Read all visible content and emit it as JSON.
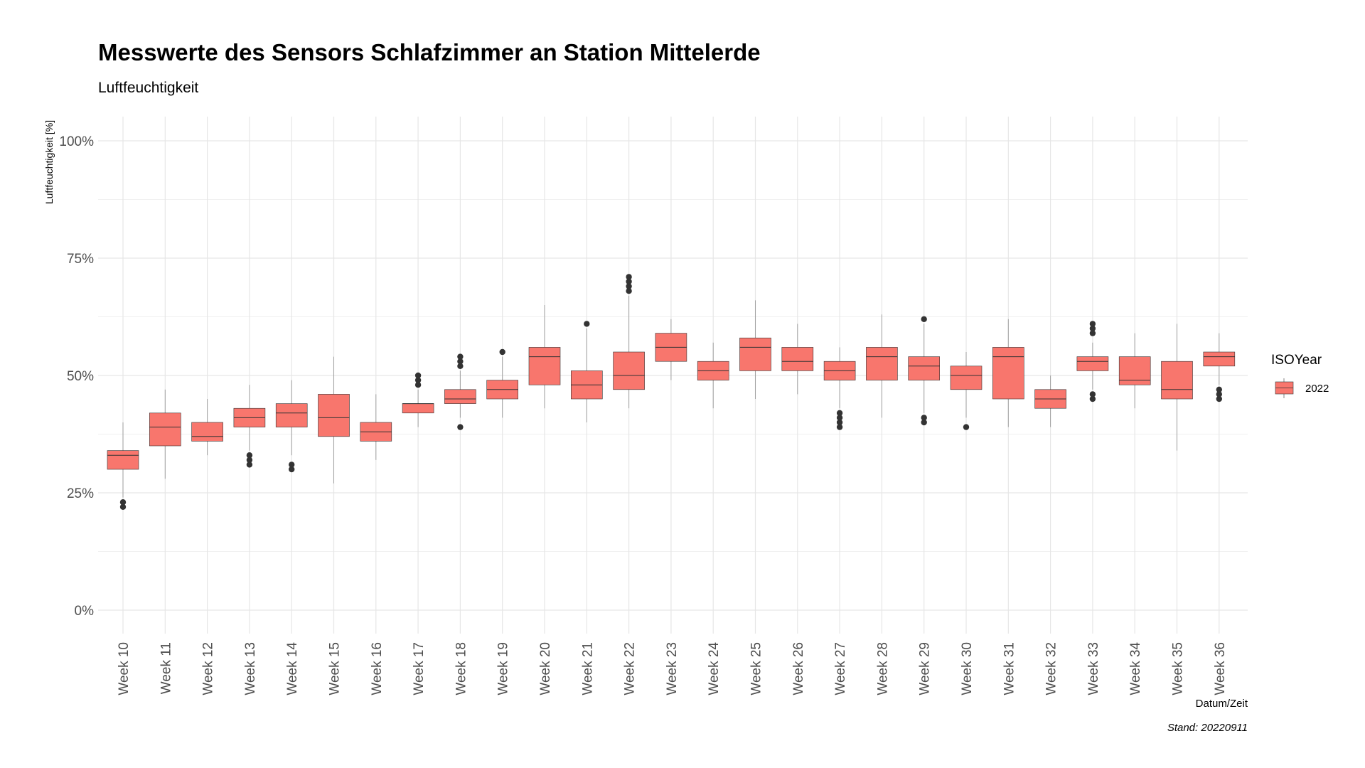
{
  "chart_data": {
    "type": "boxplot",
    "title": "Messwerte des Sensors Schlafzimmer an Station Mittelerde",
    "subtitle": "Luftfeuchtigkeit",
    "xlabel": "Datum/Zeit",
    "ylabel": "Luftfeuchtigkeit [%]",
    "caption": "Stand: 20220911",
    "ylim": [
      0,
      100
    ],
    "y_ticks": [
      "0%",
      "25%",
      "50%",
      "75%",
      "100%"
    ],
    "y_tick_values": [
      0,
      25,
      50,
      75,
      100
    ],
    "grid": true,
    "legend": {
      "title": "ISOYear",
      "position": "right",
      "entries": [
        {
          "label": "2022",
          "color": "#F8766D"
        }
      ]
    },
    "colors": {
      "fill": "#F8766D",
      "line": "#333333",
      "grid": "#e6e6e6",
      "outlier": "#333333"
    },
    "categories": [
      "Week 10",
      "Week 11",
      "Week 12",
      "Week 13",
      "Week 14",
      "Week 15",
      "Week 16",
      "Week 17",
      "Week 18",
      "Week 19",
      "Week 20",
      "Week 21",
      "Week 22",
      "Week 23",
      "Week 24",
      "Week 25",
      "Week 26",
      "Week 27",
      "Week 28",
      "Week 29",
      "Week 30",
      "Week 31",
      "Week 32",
      "Week 33",
      "Week 34",
      "Week 35",
      "Week 36"
    ],
    "series": [
      {
        "name": "2022",
        "boxes": [
          {
            "lower": 24,
            "q1": 30,
            "median": 33,
            "q3": 34,
            "upper": 40,
            "outliers": [
              22,
              23
            ]
          },
          {
            "lower": 28,
            "q1": 35,
            "median": 39,
            "q3": 42,
            "upper": 47,
            "outliers": []
          },
          {
            "lower": 33,
            "q1": 36,
            "median": 37,
            "q3": 40,
            "upper": 45,
            "outliers": []
          },
          {
            "lower": 34,
            "q1": 39,
            "median": 41,
            "q3": 43,
            "upper": 48,
            "outliers": [
              31,
              32,
              33
            ]
          },
          {
            "lower": 33,
            "q1": 39,
            "median": 42,
            "q3": 44,
            "upper": 49,
            "outliers": [
              30,
              31
            ]
          },
          {
            "lower": 27,
            "q1": 37,
            "median": 41,
            "q3": 46,
            "upper": 54,
            "outliers": []
          },
          {
            "lower": 32,
            "q1": 36,
            "median": 38,
            "q3": 40,
            "upper": 46,
            "outliers": []
          },
          {
            "lower": 39,
            "q1": 42,
            "median": 44,
            "q3": 44,
            "upper": 47,
            "outliers": [
              48,
              49,
              50
            ]
          },
          {
            "lower": 41,
            "q1": 44,
            "median": 45,
            "q3": 47,
            "upper": 51,
            "outliers": [
              39,
              52,
              53,
              54
            ]
          },
          {
            "lower": 41,
            "q1": 45,
            "median": 47,
            "q3": 49,
            "upper": 54,
            "outliers": [
              55
            ]
          },
          {
            "lower": 43,
            "q1": 48,
            "median": 54,
            "q3": 56,
            "upper": 65,
            "outliers": []
          },
          {
            "lower": 40,
            "q1": 45,
            "median": 48,
            "q3": 51,
            "upper": 60,
            "outliers": [
              61
            ]
          },
          {
            "lower": 43,
            "q1": 47,
            "median": 50,
            "q3": 55,
            "upper": 67,
            "outliers": [
              68,
              69,
              70,
              71
            ]
          },
          {
            "lower": 49,
            "q1": 53,
            "median": 56,
            "q3": 59,
            "upper": 62,
            "outliers": []
          },
          {
            "lower": 43,
            "q1": 49,
            "median": 51,
            "q3": 53,
            "upper": 57,
            "outliers": []
          },
          {
            "lower": 45,
            "q1": 51,
            "median": 56,
            "q3": 58,
            "upper": 66,
            "outliers": []
          },
          {
            "lower": 46,
            "q1": 51,
            "median": 53,
            "q3": 56,
            "upper": 61,
            "outliers": []
          },
          {
            "lower": 43,
            "q1": 49,
            "median": 51,
            "q3": 53,
            "upper": 56,
            "outliers": [
              39,
              40,
              41,
              42
            ]
          },
          {
            "lower": 41,
            "q1": 49,
            "median": 54,
            "q3": 56,
            "upper": 63,
            "outliers": []
          },
          {
            "lower": 42,
            "q1": 49,
            "median": 52,
            "q3": 54,
            "upper": 61,
            "outliers": [
              40,
              41,
              62
            ]
          },
          {
            "lower": 41,
            "q1": 47,
            "median": 50,
            "q3": 52,
            "upper": 55,
            "outliers": [
              39
            ]
          },
          {
            "lower": 39,
            "q1": 45,
            "median": 54,
            "q3": 56,
            "upper": 62,
            "outliers": []
          },
          {
            "lower": 39,
            "q1": 43,
            "median": 45,
            "q3": 47,
            "upper": 50,
            "outliers": []
          },
          {
            "lower": 47,
            "q1": 51,
            "median": 53,
            "q3": 54,
            "upper": 57,
            "outliers": [
              45,
              46,
              59,
              60,
              61
            ]
          },
          {
            "lower": 43,
            "q1": 48,
            "median": 49,
            "q3": 54,
            "upper": 59,
            "outliers": []
          },
          {
            "lower": 34,
            "q1": 45,
            "median": 47,
            "q3": 53,
            "upper": 61,
            "outliers": []
          },
          {
            "lower": 48,
            "q1": 52,
            "median": 54,
            "q3": 55,
            "upper": 59,
            "outliers": [
              45,
              46,
              47
            ]
          }
        ]
      }
    ]
  }
}
